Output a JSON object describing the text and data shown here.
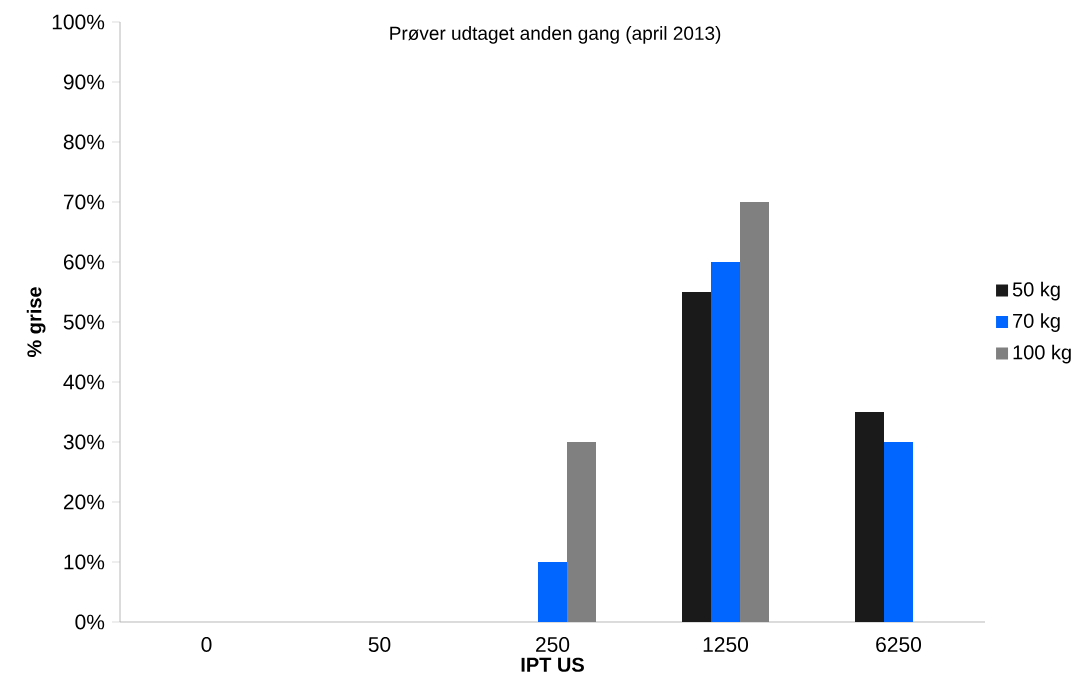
{
  "chart_data": {
    "type": "bar",
    "title": "Prøver udtaget anden gang (april 2013)",
    "xlabel": "IPT US",
    "ylabel": "% grise",
    "categories": [
      "0",
      "50",
      "250",
      "1250",
      "6250"
    ],
    "series": [
      {
        "name": "50 kg",
        "color": "#1a1a1a",
        "values": [
          null,
          null,
          null,
          55,
          35
        ]
      },
      {
        "name": "70 kg",
        "color": "#0066ff",
        "values": [
          null,
          null,
          10,
          60,
          30
        ]
      },
      {
        "name": "100 kg",
        "color": "#808080",
        "values": [
          null,
          null,
          30,
          70,
          null
        ]
      }
    ],
    "ylim": [
      0,
      100
    ],
    "yticks": [
      {
        "value": 0,
        "label": "0%"
      },
      {
        "value": 10,
        "label": "10%"
      },
      {
        "value": 20,
        "label": "20%"
      },
      {
        "value": 30,
        "label": "30%"
      },
      {
        "value": 40,
        "label": "40%"
      },
      {
        "value": 50,
        "label": "50%"
      },
      {
        "value": 60,
        "label": "60%"
      },
      {
        "value": 70,
        "label": "70%"
      },
      {
        "value": 80,
        "label": "80%"
      },
      {
        "value": 90,
        "label": "90%"
      },
      {
        "value": 100,
        "label": "100%"
      }
    ],
    "grid": false,
    "legend": "right"
  }
}
